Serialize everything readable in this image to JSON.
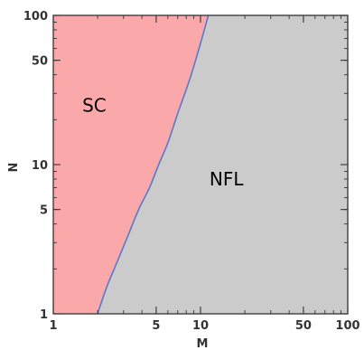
{
  "chart_data": {
    "type": "area",
    "title": "",
    "xlabel": "M",
    "ylabel": "N",
    "xscale": "log",
    "yscale": "log",
    "xlim": [
      1,
      100
    ],
    "ylim": [
      1,
      100
    ],
    "x_ticks": [
      {
        "value": 1,
        "label": "1"
      },
      {
        "value": 5,
        "label": "5"
      },
      {
        "value": 10,
        "label": "10"
      },
      {
        "value": 50,
        "label": "50"
      },
      {
        "value": 100,
        "label": "100"
      }
    ],
    "y_ticks": [
      {
        "value": 1,
        "label": "1"
      },
      {
        "value": 5,
        "label": "5"
      },
      {
        "value": 10,
        "label": "10"
      },
      {
        "value": 50,
        "label": "50"
      },
      {
        "value": 100,
        "label": "100"
      }
    ],
    "boundary": {
      "x": [
        2.0,
        2.3,
        2.7,
        3.2,
        3.8,
        4.5,
        5.2,
        6.0,
        7.0,
        8.5,
        10.0,
        11.3
      ],
      "y": [
        1.0,
        1.5,
        2.2,
        3.3,
        5.0,
        7.0,
        10.0,
        14.0,
        22.0,
        38.0,
        65.0,
        100.0
      ],
      "color": "#5b78c8"
    },
    "regions": [
      {
        "name": "SC",
        "label_position": {
          "x": 1.9,
          "y": 25
        },
        "color": "#fba8ab",
        "side": "left"
      },
      {
        "name": "NFL",
        "label_position": {
          "x": 15,
          "y": 8
        },
        "color": "#cbcbcb",
        "side": "right"
      }
    ],
    "grid": false,
    "legend": "none"
  }
}
